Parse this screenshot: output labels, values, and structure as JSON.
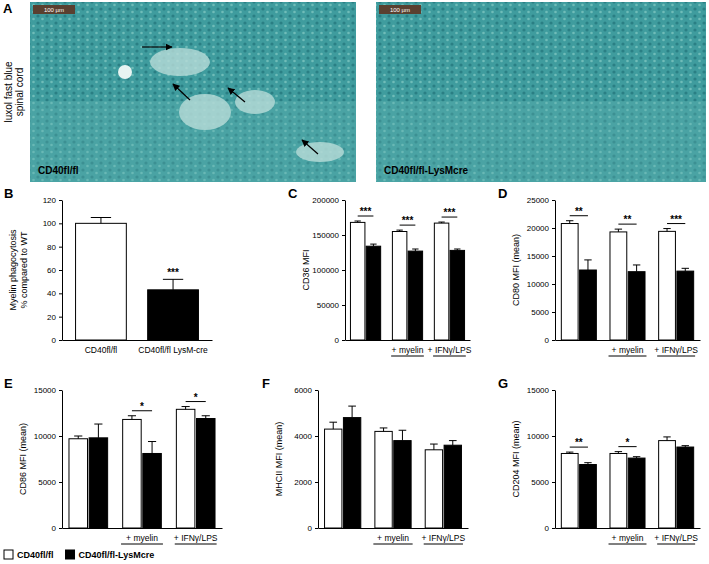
{
  "image_panel": {
    "label": "A",
    "side_label": [
      "luxol fast blue",
      "spinal cord"
    ],
    "images": [
      {
        "caption": "CD40fl/fl",
        "scale_bar": "100 µm"
      },
      {
        "caption": "CD40fl/fl-LysMcre",
        "scale_bar": "100 µm"
      }
    ]
  },
  "chart_data": [
    {
      "type": "bar",
      "title": "B",
      "y_label": [
        "Myelin phagocytosis",
        "% compared to WT"
      ],
      "categories": [
        "CD40fl/fl",
        "CD40fl/fl LysM-cre"
      ],
      "values": [
        100,
        43
      ],
      "errors": [
        5,
        9
      ],
      "colors": [
        "#ffffff",
        "#000000"
      ],
      "ylim": [
        0,
        120
      ],
      "yticks": [
        0,
        20,
        40,
        60,
        80,
        100,
        120
      ],
      "annotations": [
        {
          "category": 1,
          "text": "***"
        }
      ]
    },
    {
      "type": "bar",
      "title": "C",
      "y_label": [
        "CD36 MFI"
      ],
      "categories": [
        null,
        "+ myelin",
        "+ IFNγ/LPS"
      ],
      "series": [
        {
          "name": "CD40fl/fl",
          "color": "#ffffff",
          "values": [
            168000,
            155000,
            167000
          ],
          "errors": [
            2000,
            2000,
            1500
          ]
        },
        {
          "name": "CD40fl/fl-LysMcre",
          "color": "#000000",
          "values": [
            134000,
            127000,
            128000
          ],
          "errors": [
            3000,
            3000,
            2000
          ]
        }
      ],
      "ylim": [
        0,
        200000
      ],
      "yticks": [
        0,
        50000,
        100000,
        150000,
        200000
      ],
      "annotations": [
        {
          "category": 0,
          "text": "***"
        },
        {
          "category": 1,
          "text": "***"
        },
        {
          "category": 2,
          "text": "***"
        }
      ]
    },
    {
      "type": "bar",
      "title": "D",
      "y_label": [
        "CD80 MFI (mean)"
      ],
      "categories": [
        null,
        "+ myelin",
        "+ IFNγ/LPS"
      ],
      "series": [
        {
          "color": "#ffffff",
          "values": [
            20800,
            19300,
            19400
          ],
          "errors": [
            500,
            500,
            500
          ]
        },
        {
          "color": "#000000",
          "values": [
            12500,
            12200,
            12300
          ],
          "errors": [
            1800,
            1200,
            500
          ]
        }
      ],
      "ylim": [
        0,
        25000
      ],
      "yticks": [
        0,
        5000,
        10000,
        15000,
        20000,
        25000
      ],
      "annotations": [
        {
          "category": 0,
          "text": "**"
        },
        {
          "category": 1,
          "text": "**"
        },
        {
          "category": 2,
          "text": "***"
        }
      ]
    },
    {
      "type": "bar",
      "title": "E",
      "y_label": [
        "CD86 MFI (mean)"
      ],
      "categories": [
        null,
        "+ myelin",
        "+ IFNγ/LPS"
      ],
      "series": [
        {
          "color": "#ffffff",
          "values": [
            9700,
            11800,
            12900
          ],
          "errors": [
            300,
            400,
            300
          ]
        },
        {
          "color": "#000000",
          "values": [
            9800,
            8100,
            11900
          ],
          "errors": [
            1500,
            1300,
            300
          ]
        }
      ],
      "ylim": [
        0,
        15000
      ],
      "yticks": [
        0,
        5000,
        10000,
        15000
      ],
      "annotations": [
        {
          "category": 1,
          "text": "*"
        },
        {
          "category": 2,
          "text": "*"
        }
      ]
    },
    {
      "type": "bar",
      "title": "F",
      "y_label": [
        "MHCII MFI (mean)"
      ],
      "categories": [
        null,
        "+ myelin",
        "+ IFNγ/LPS"
      ],
      "series": [
        {
          "color": "#ffffff",
          "values": [
            4300,
            4200,
            3400
          ],
          "errors": [
            300,
            150,
            250
          ]
        },
        {
          "color": "#000000",
          "values": [
            4800,
            3800,
            3600
          ],
          "errors": [
            500,
            450,
            200
          ]
        }
      ],
      "ylim": [
        0,
        6000
      ],
      "yticks": [
        0,
        2000,
        4000,
        6000
      ]
    },
    {
      "type": "bar",
      "title": "G",
      "y_label": [
        "CD204 MFI (mean)"
      ],
      "categories": [
        null,
        "+ myelin",
        "+ IFNγ/LPS"
      ],
      "series": [
        {
          "color": "#ffffff",
          "values": [
            8100,
            8100,
            9500
          ],
          "errors": [
            150,
            200,
            400
          ]
        },
        {
          "color": "#000000",
          "values": [
            6900,
            7600,
            8800
          ],
          "errors": [
            200,
            150,
            150
          ]
        }
      ],
      "ylim": [
        0,
        15000
      ],
      "yticks": [
        0,
        5000,
        10000,
        15000
      ],
      "annotations": [
        {
          "category": 0,
          "text": "**"
        },
        {
          "category": 1,
          "text": "*"
        }
      ]
    }
  ]
}
